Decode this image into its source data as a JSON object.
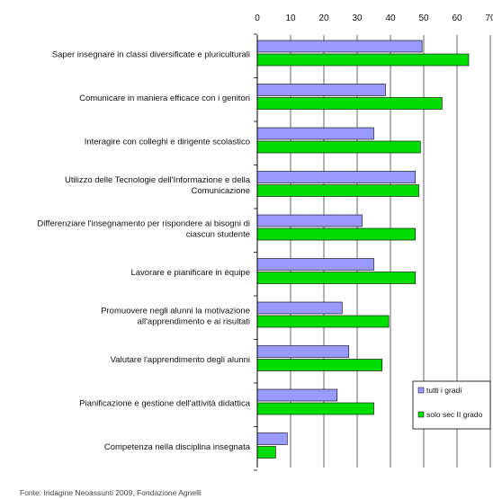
{
  "chart_data": {
    "type": "bar",
    "orientation": "horizontal",
    "categories": [
      [
        "Saper insegnare in classi diversificate e pluriculturali"
      ],
      [
        "Comunicare in maniera efficace con i genitori"
      ],
      [
        "Interagire con colleghi e dirigente scolastico"
      ],
      [
        "Utilizzo delle Tecnologie dell'Informazione e della",
        "Comunicazione"
      ],
      [
        "Differenziare l'insegnamento per rispondere ai bisogni di",
        "ciascun studente"
      ],
      [
        "Lavorare e pianificare in èquipe"
      ],
      [
        "Promuovere negli alunni la motivazione",
        "all'apprendimento e ai risultati"
      ],
      [
        "Valutare l'apprendimento degli alunni"
      ],
      [
        "Pianificazione e gestione dell'attività didattica"
      ],
      [
        "Competenza nella disciplina insegnata"
      ]
    ],
    "series": [
      {
        "name": "tutti i gradi",
        "color": "#9999ff",
        "values": [
          49.5,
          38.5,
          35,
          47.5,
          31.5,
          35,
          25.5,
          27.5,
          24,
          9
        ]
      },
      {
        "name": "solo sec II grado",
        "color": "#00dd00",
        "values": [
          63.5,
          55.5,
          49,
          48.5,
          47.5,
          47.5,
          39.5,
          37.5,
          35,
          5.5
        ]
      }
    ],
    "xlim": [
      0,
      70
    ],
    "xticks": [
      "0",
      "10",
      "20",
      "30",
      "40",
      "50",
      "60",
      "70"
    ],
    "grid": true,
    "legend": "bottom-right",
    "xlabel": "",
    "ylabel": "",
    "title": ""
  },
  "source_note": "Fonte: Indagine Neoassunti 2009, Fondazione Agnelli"
}
